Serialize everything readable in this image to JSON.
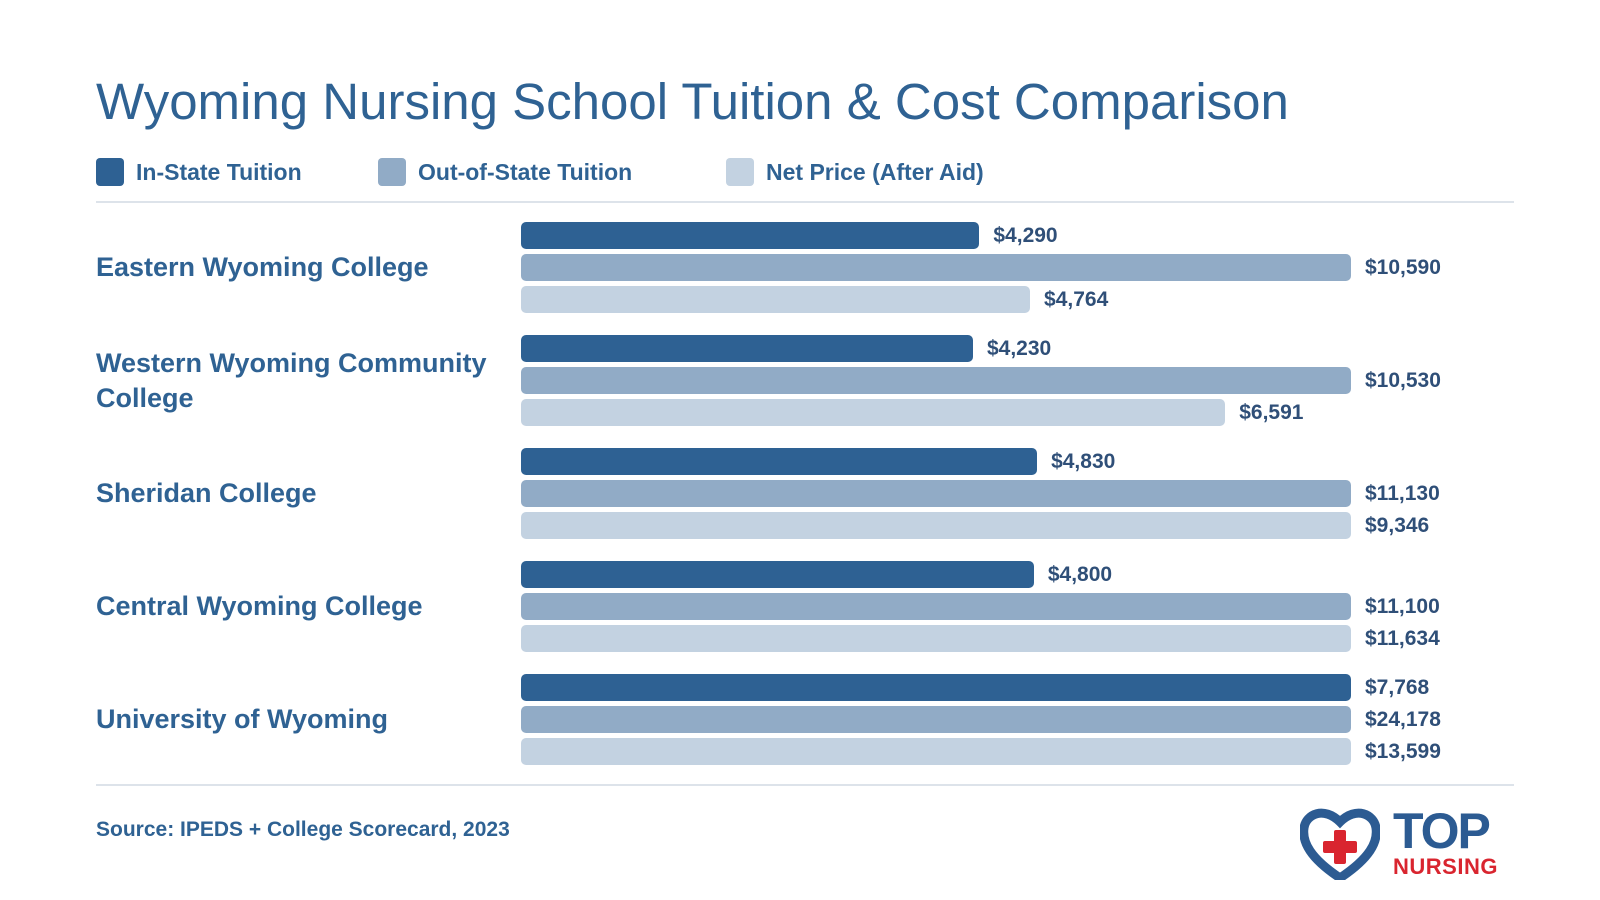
{
  "chart_data": {
    "type": "bar",
    "orientation": "horizontal",
    "title": "Wyoming Nursing School Tuition & Cost Comparison",
    "categories": [
      "Eastern Wyoming College",
      "Western Wyoming Community College",
      "Sheridan College",
      "Central Wyoming College",
      "University of Wyoming"
    ],
    "series": [
      {
        "name": "In-State Tuition",
        "color": "#2e6193",
        "values": [
          4290,
          4230,
          4830,
          4800,
          7768
        ],
        "labels": [
          "$4,290",
          "$4,230",
          "$4,830",
          "$4,800",
          "$7,768"
        ]
      },
      {
        "name": "Out-of-State Tuition",
        "color": "#91abc6",
        "values": [
          10590,
          10530,
          11130,
          11100,
          24178
        ],
        "labels": [
          "$10,590",
          "$10,530",
          "$11,130",
          "$11,100",
          "$24,178"
        ]
      },
      {
        "name": "Net Price (After Aid)",
        "color": "#c3d2e1",
        "values": [
          4764,
          6591,
          9346,
          11634,
          13599
        ],
        "labels": [
          "$4,764",
          "$6,591",
          "$9,346",
          "$11,634",
          "$13,599"
        ]
      }
    ],
    "legend_position": "top-left",
    "grid": false
  },
  "footer": {
    "source": "Source: IPEDS + College Scorecard, 2023"
  },
  "logo": {
    "line1": "TOP",
    "line2": "NURSING",
    "heart_color": "#2c5b92",
    "cross_color": "#d9252f"
  }
}
